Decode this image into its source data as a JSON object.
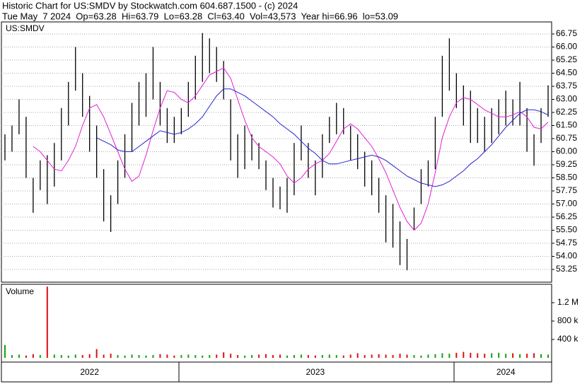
{
  "header": {
    "line1": "Historic Chart for US:SMDV by Stockwatch.com 604.687.1500 - (c) 2024",
    "line2": "Tue May  7 2024  Op=63.28  Hi=63.79  Lo=63.28  Cl=63.40  Vol=43,573  Year hi=66.96  lo=53.09"
  },
  "chart_data": [
    {
      "type": "hilo",
      "title": "US:SMDV",
      "bar_color": "#000000",
      "grid": true,
      "ylim": [
        52.52,
        67.44
      ],
      "yticks": [
        53.25,
        {
          "value": 54,
          "label": "54.00"
        },
        54.75,
        {
          "value": 55.5,
          "label": "55.50"
        },
        56.25,
        {
          "value": 57,
          "label": "57.00"
        },
        57.75,
        {
          "value": 58.5,
          "label": "58.50"
        },
        59.25,
        {
          "value": 60,
          "label": "60.00"
        },
        60.75,
        {
          "value": 61.5,
          "label": "61.50"
        },
        62.25,
        {
          "value": 63,
          "label": "63.00"
        },
        63.75,
        {
          "value": 64.5,
          "label": "64.50"
        },
        65.25,
        {
          "value": 66,
          "label": "66.00"
        },
        66.75
      ],
      "categories": [
        null,
        null,
        null,
        null,
        null,
        null,
        null,
        null,
        null,
        null,
        null,
        null,
        "2022",
        null,
        null,
        null,
        null,
        null,
        null,
        null,
        null,
        null,
        null,
        null,
        null,
        null,
        null,
        null,
        null,
        null,
        null,
        null,
        null,
        null,
        null,
        null,
        null,
        null,
        null,
        null,
        null,
        null,
        null,
        null,
        "2023",
        null,
        null,
        null,
        null,
        null,
        null,
        null,
        null,
        null,
        null,
        null,
        null,
        null,
        null,
        null,
        null,
        null,
        null,
        null,
        null,
        null,
        null,
        null,
        null,
        null,
        null,
        "2024",
        null,
        null,
        null,
        null,
        null,
        null
      ],
      "high": [
        61.0,
        61.5,
        63.0,
        62.0,
        58.5,
        59.5,
        59.8,
        60.5,
        62.5,
        64.0,
        66.0,
        64.5,
        63.2,
        61.5,
        59.0,
        57.5,
        59.5,
        61.0,
        62.8,
        64.0,
        64.5,
        66.0,
        64.0,
        62.5,
        62.0,
        62.5,
        64.0,
        65.5,
        66.8,
        66.5,
        66.0,
        65.2,
        63.0,
        61.0,
        61.5,
        61.0,
        60.5,
        59.5,
        58.5,
        58.0,
        58.5,
        60.5,
        61.5,
        60.5,
        59.5,
        61.0,
        62.0,
        62.8,
        62.5,
        61.5,
        61.0,
        60.0,
        59.5,
        58.5,
        57.5,
        57.0,
        56.0,
        55.0,
        56.8,
        59.0,
        59.5,
        62.0,
        65.5,
        66.5,
        64.5,
        63.8,
        63.5,
        62.5,
        62.0,
        62.5,
        63.0,
        63.5,
        63.0,
        64.0,
        62.5,
        61.0,
        62.5,
        63.8
      ],
      "low": [
        59.5,
        60.0,
        61.0,
        58.5,
        56.5,
        57.8,
        57.0,
        58.0,
        59.5,
        61.5,
        63.5,
        62.0,
        60.0,
        58.5,
        56.0,
        55.4,
        57.0,
        58.5,
        60.0,
        61.5,
        62.0,
        63.0,
        61.5,
        60.5,
        60.5,
        61.0,
        62.0,
        63.0,
        64.0,
        64.5,
        64.0,
        63.0,
        59.5,
        58.5,
        59.0,
        59.5,
        59.0,
        57.8,
        56.8,
        56.7,
        56.5,
        57.5,
        59.5,
        58.5,
        57.5,
        58.5,
        60.5,
        61.0,
        61.0,
        59.5,
        59.0,
        58.0,
        57.5,
        56.5,
        54.8,
        54.5,
        53.5,
        53.2,
        55.5,
        57.0,
        58.0,
        59.0,
        62.0,
        63.5,
        62.5,
        61.5,
        60.5,
        60.5,
        60.0,
        60.5,
        61.0,
        61.5,
        61.5,
        61.5,
        60.0,
        59.2,
        60.5,
        62.0
      ],
      "lines": [
        {
          "color": "#e020d8",
          "values": [
            null,
            null,
            null,
            null,
            60.3,
            60.0,
            59.5,
            59.0,
            58.9,
            59.5,
            60.3,
            61.5,
            62.5,
            62.7,
            62.0,
            61.0,
            60.0,
            59.0,
            58.3,
            58.6,
            59.8,
            61.2,
            62.5,
            63.5,
            63.4,
            63.0,
            62.8,
            63.2,
            63.8,
            64.4,
            64.6,
            64.8,
            64.2,
            63.0,
            61.8,
            60.8,
            60.3,
            60.0,
            59.7,
            59.3,
            58.6,
            58.2,
            58.5,
            59.0,
            59.3,
            59.5,
            59.9,
            60.6,
            61.3,
            61.6,
            61.3,
            60.8,
            60.3,
            59.6,
            58.8,
            57.8,
            56.8,
            56.0,
            55.5,
            55.9,
            57.0,
            58.8,
            60.8,
            62.0,
            62.8,
            63.1,
            63.0,
            62.7,
            62.4,
            62.2,
            62.0,
            62.0,
            62.1,
            62.3,
            62.0,
            61.4,
            61.3,
            61.7
          ]
        },
        {
          "color": "#2424d0",
          "values": [
            null,
            null,
            null,
            null,
            null,
            null,
            null,
            null,
            null,
            null,
            null,
            null,
            null,
            60.8,
            60.6,
            60.4,
            60.1,
            60.0,
            60.0,
            60.3,
            60.6,
            60.9,
            61.2,
            61.1,
            61.0,
            61.1,
            61.3,
            61.6,
            62.0,
            62.6,
            63.2,
            63.6,
            63.6,
            63.4,
            63.2,
            62.9,
            62.6,
            62.3,
            62.0,
            61.6,
            61.3,
            61.0,
            60.6,
            60.2,
            59.9,
            59.5,
            59.3,
            59.3,
            59.4,
            59.5,
            59.6,
            59.7,
            59.8,
            59.7,
            59.5,
            59.2,
            58.9,
            58.6,
            58.4,
            58.2,
            58.1,
            58.0,
            58.1,
            58.3,
            58.6,
            58.9,
            59.3,
            59.6,
            60.0,
            60.4,
            60.9,
            61.4,
            61.8,
            62.2,
            62.4,
            62.4,
            62.3,
            62.1
          ]
        }
      ]
    },
    {
      "type": "bar",
      "title": "Volume",
      "up_color": "#12a012",
      "down_color": "#dd1010",
      "ylim": [
        0,
        1600000
      ],
      "yticks": [
        {
          "value": 400000,
          "label": "400 k"
        },
        {
          "value": 800000,
          "label": "800 k"
        },
        {
          "value": 1200000,
          "label": "1.2 M"
        }
      ],
      "values": [
        280000,
        60000,
        70000,
        50000,
        80000,
        60000,
        1550000,
        70000,
        60000,
        50000,
        70000,
        60000,
        80000,
        190000,
        70000,
        90000,
        60000,
        50000,
        70000,
        60000,
        50000,
        60000,
        80000,
        70000,
        50000,
        60000,
        70000,
        60000,
        50000,
        60000,
        70000,
        120000,
        90000,
        60000,
        50000,
        60000,
        70000,
        80000,
        60000,
        70000,
        50000,
        60000,
        70000,
        60000,
        50000,
        60000,
        70000,
        60000,
        50000,
        70000,
        100000,
        60000,
        70000,
        80000,
        70000,
        60000,
        90000,
        70000,
        60000,
        50000,
        70000,
        80000,
        100000,
        90000,
        110000,
        130000,
        110000,
        100000,
        90000,
        100000,
        110000,
        90000,
        100000,
        80000,
        90000,
        100000,
        80000,
        70000
      ]
    }
  ]
}
